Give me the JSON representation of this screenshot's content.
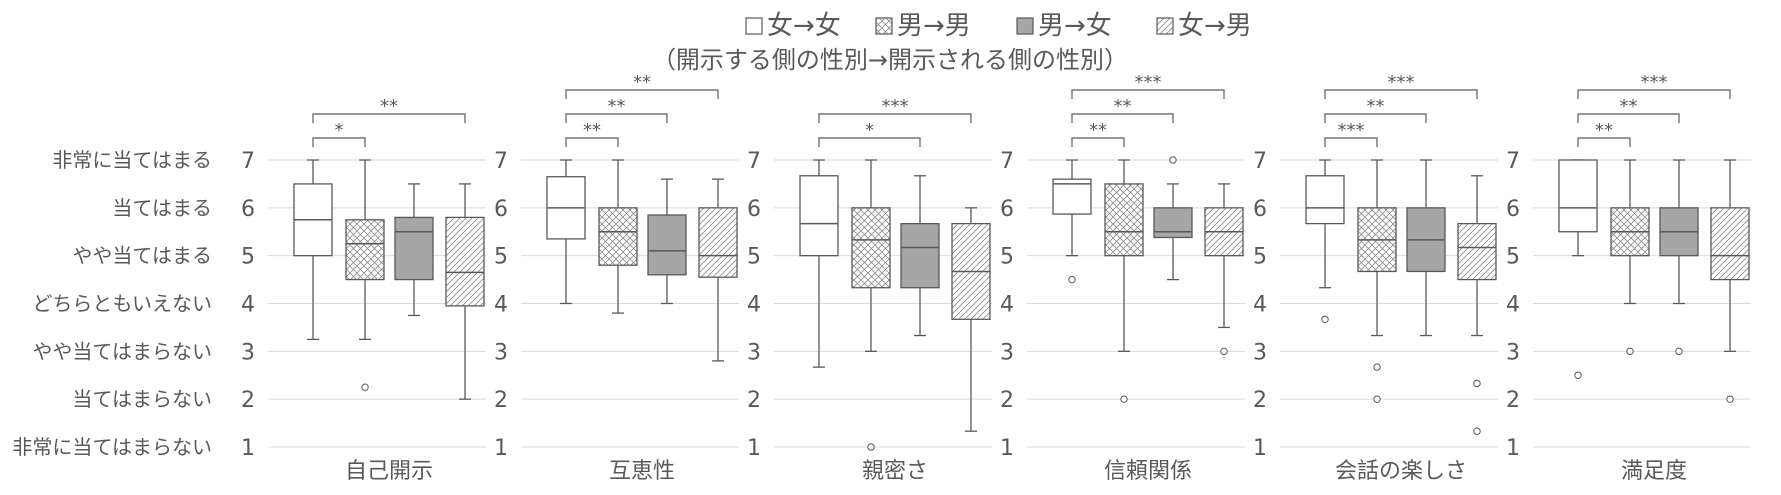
{
  "chart_data": {
    "type": "boxplot",
    "legend": {
      "placement": "top-center",
      "entries": [
        {
          "label": "女→女",
          "pattern": "white"
        },
        {
          "label": "男→男",
          "pattern": "crosshatch"
        },
        {
          "label": "男→女",
          "pattern": "gray"
        },
        {
          "label": "女→男",
          "pattern": "diagonal"
        }
      ],
      "subtitle": "（開示する側の性別→開示される側の性別）"
    },
    "ylim": [
      1,
      7
    ],
    "yticks": [
      1,
      2,
      3,
      4,
      5,
      6,
      7
    ],
    "scale_labels": [
      "非常に当てはまる",
      "当てはまる",
      "やや当てはまる",
      "どちらともいえない",
      "やや当てはまらない",
      "当てはまらない",
      "非常に当てはまらない"
    ],
    "panels": [
      {
        "title": "自己開示",
        "boxes": [
          {
            "group": "女→女",
            "min": 3.25,
            "q1": 5.0,
            "median": 5.75,
            "q3": 6.5,
            "max": 7.0,
            "outliers": []
          },
          {
            "group": "男→男",
            "min": 3.25,
            "q1": 4.5,
            "median": 5.25,
            "q3": 5.75,
            "max": 7.0,
            "outliers": [
              2.25
            ]
          },
          {
            "group": "男→女",
            "min": 3.75,
            "q1": 4.5,
            "median": 5.5,
            "q3": 5.8,
            "max": 6.5,
            "outliers": []
          },
          {
            "group": "女→男",
            "min": 2.0,
            "q1": 3.95,
            "median": 4.65,
            "q3": 5.8,
            "max": 6.5,
            "outliers": []
          }
        ],
        "significance": [
          {
            "from": 0,
            "to": 1,
            "label": "*"
          },
          {
            "from": 0,
            "to": 3,
            "label": "**"
          }
        ]
      },
      {
        "title": "互恵性",
        "boxes": [
          {
            "group": "女→女",
            "min": 4.0,
            "q1": 5.35,
            "median": 6.0,
            "q3": 6.65,
            "max": 7.0,
            "outliers": []
          },
          {
            "group": "男→男",
            "min": 3.8,
            "q1": 4.8,
            "median": 5.5,
            "q3": 6.0,
            "max": 7.0,
            "outliers": []
          },
          {
            "group": "男→女",
            "min": 4.0,
            "q1": 4.6,
            "median": 5.1,
            "q3": 5.85,
            "max": 6.6,
            "outliers": []
          },
          {
            "group": "女→男",
            "min": 2.8,
            "q1": 4.55,
            "median": 5.0,
            "q3": 6.0,
            "max": 6.6,
            "outliers": []
          }
        ],
        "significance": [
          {
            "from": 0,
            "to": 1,
            "label": "**"
          },
          {
            "from": 0,
            "to": 2,
            "label": "**"
          },
          {
            "from": 0,
            "to": 3,
            "label": "**"
          }
        ]
      },
      {
        "title": "親密さ",
        "boxes": [
          {
            "group": "女→女",
            "min": 2.67,
            "q1": 5.0,
            "median": 5.67,
            "q3": 6.67,
            "max": 7.0,
            "outliers": []
          },
          {
            "group": "男→男",
            "min": 3.0,
            "q1": 4.33,
            "median": 5.33,
            "q3": 6.0,
            "max": 7.0,
            "outliers": [
              1.0
            ]
          },
          {
            "group": "男→女",
            "min": 3.33,
            "q1": 4.33,
            "median": 5.17,
            "q3": 5.67,
            "max": 6.67,
            "outliers": []
          },
          {
            "group": "女→男",
            "min": 1.33,
            "q1": 3.67,
            "median": 4.67,
            "q3": 5.67,
            "max": 6.0,
            "outliers": []
          }
        ],
        "significance": [
          {
            "from": 0,
            "to": 2,
            "label": "*"
          },
          {
            "from": 0,
            "to": 3,
            "label": "***"
          }
        ]
      },
      {
        "title": "信頼関係",
        "boxes": [
          {
            "group": "女→女",
            "min": 5.0,
            "q1": 5.87,
            "median": 6.5,
            "q3": 6.6,
            "max": 7.0,
            "outliers": [
              4.5
            ]
          },
          {
            "group": "男→男",
            "min": 3.0,
            "q1": 5.0,
            "median": 5.5,
            "q3": 6.5,
            "max": 7.0,
            "outliers": [
              2.0
            ]
          },
          {
            "group": "男→女",
            "min": 4.5,
            "q1": 5.38,
            "median": 5.5,
            "q3": 6.0,
            "max": 6.5,
            "outliers": [
              7.0
            ]
          },
          {
            "group": "女→男",
            "min": 3.5,
            "q1": 5.0,
            "median": 5.5,
            "q3": 6.0,
            "max": 6.5,
            "outliers": [
              3.0
            ]
          }
        ],
        "significance": [
          {
            "from": 0,
            "to": 1,
            "label": "**"
          },
          {
            "from": 0,
            "to": 2,
            "label": "**"
          },
          {
            "from": 0,
            "to": 3,
            "label": "***"
          }
        ]
      },
      {
        "title": "会話の楽しさ",
        "boxes": [
          {
            "group": "女→女",
            "min": 4.33,
            "q1": 5.67,
            "median": 6.0,
            "q3": 6.67,
            "max": 7.0,
            "outliers": [
              3.67
            ]
          },
          {
            "group": "男→男",
            "min": 3.33,
            "q1": 4.67,
            "median": 5.33,
            "q3": 6.0,
            "max": 7.0,
            "outliers": [
              2.67,
              2.0
            ]
          },
          {
            "group": "男→女",
            "min": 3.33,
            "q1": 4.67,
            "median": 5.33,
            "q3": 6.0,
            "max": 7.0,
            "outliers": []
          },
          {
            "group": "女→男",
            "min": 3.33,
            "q1": 4.5,
            "median": 5.17,
            "q3": 5.67,
            "max": 6.67,
            "outliers": [
              2.33,
              1.33
            ]
          }
        ],
        "significance": [
          {
            "from": 0,
            "to": 1,
            "label": "***"
          },
          {
            "from": 0,
            "to": 2,
            "label": "**"
          },
          {
            "from": 0,
            "to": 3,
            "label": "***"
          }
        ]
      },
      {
        "title": "満足度",
        "boxes": [
          {
            "group": "女→女",
            "min": 5.0,
            "q1": 5.5,
            "median": 6.0,
            "q3": 7.0,
            "max": 7.0,
            "outliers": [
              2.5
            ]
          },
          {
            "group": "男→男",
            "min": 4.0,
            "q1": 5.0,
            "median": 5.5,
            "q3": 6.0,
            "max": 7.0,
            "outliers": [
              3.0
            ]
          },
          {
            "group": "男→女",
            "min": 4.0,
            "q1": 5.0,
            "median": 5.5,
            "q3": 6.0,
            "max": 7.0,
            "outliers": [
              3.0
            ]
          },
          {
            "group": "女→男",
            "min": 3.0,
            "q1": 4.5,
            "median": 5.0,
            "q3": 6.0,
            "max": 7.0,
            "outliers": [
              2.0
            ]
          }
        ],
        "significance": [
          {
            "from": 0,
            "to": 1,
            "label": "**"
          },
          {
            "from": 0,
            "to": 2,
            "label": "**"
          },
          {
            "from": 0,
            "to": 3,
            "label": "***"
          }
        ]
      }
    ]
  }
}
